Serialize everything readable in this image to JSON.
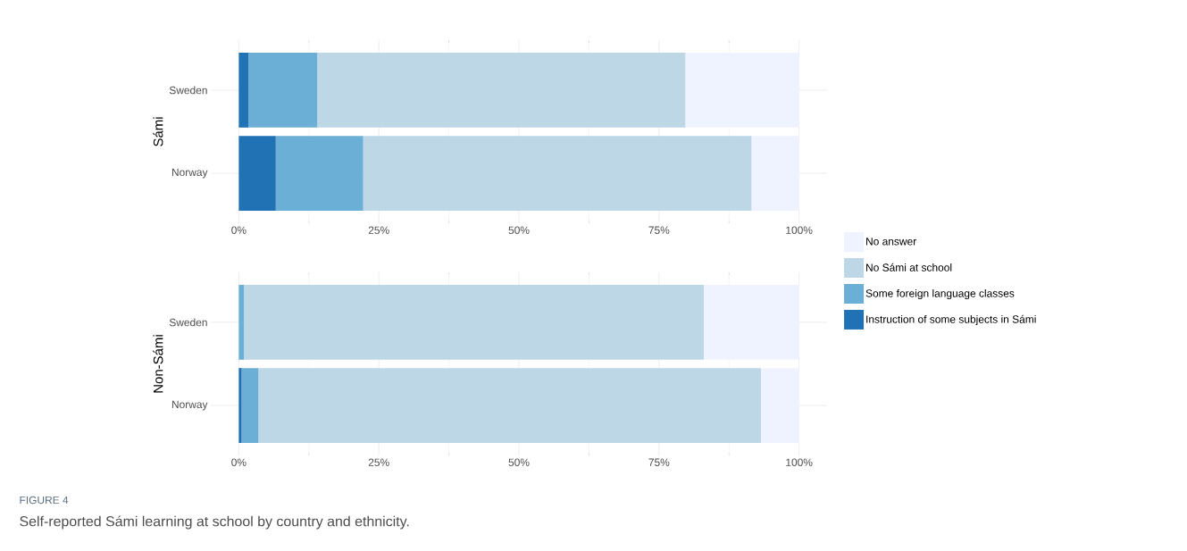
{
  "chart_data": [
    {
      "type": "bar",
      "orientation": "horizontal",
      "stacked": true,
      "ylabel": "Sámi",
      "categories": [
        "Sweden",
        "Norway"
      ],
      "xlim": [
        -5,
        105
      ],
      "xticks": [
        {
          "value": 0,
          "label": "0%"
        },
        {
          "value": 25,
          "label": "25%"
        },
        {
          "value": 50,
          "label": "50%"
        },
        {
          "value": 75,
          "label": "75%"
        },
        {
          "value": 100,
          "label": "100%"
        }
      ],
      "grid": true,
      "series": [
        {
          "color": "#2171b5",
          "values": [
            1.7,
            6.6
          ]
        },
        {
          "color": "#6baed6",
          "values": [
            12.3,
            15.6
          ]
        },
        {
          "color": "#bdd7e7",
          "values": [
            65.7,
            69.3
          ]
        },
        {
          "color": "#eff3ff",
          "values": [
            20.3,
            8.5
          ]
        }
      ]
    },
    {
      "type": "bar",
      "orientation": "horizontal",
      "stacked": true,
      "ylabel": "Non-Sámi",
      "categories": [
        "Sweden",
        "Norway"
      ],
      "xlim": [
        -5,
        105
      ],
      "xticks": [
        {
          "value": 0,
          "label": "0%"
        },
        {
          "value": 25,
          "label": "25%"
        },
        {
          "value": 50,
          "label": "50%"
        },
        {
          "value": 75,
          "label": "75%"
        },
        {
          "value": 100,
          "label": "100%"
        }
      ],
      "grid": true,
      "legend": "right",
      "series": [
        {
          "name": "Instruction of some subjects in Sámi",
          "color": "#2171b5",
          "values": [
            0,
            0.5
          ]
        },
        {
          "name": "Some foreign language classes",
          "color": "#6baed6",
          "values": [
            0.9,
            3.0
          ]
        },
        {
          "name": "No Sámi at school",
          "color": "#bdd7e7",
          "values": [
            82.1,
            89.7
          ]
        },
        {
          "name": "No answer",
          "color": "#eff3ff",
          "values": [
            17.0,
            6.8
          ]
        }
      ],
      "annotations": [
        "FIGURE 4",
        "Self-reported Sámi learning at school by country and ethnicity."
      ]
    }
  ]
}
